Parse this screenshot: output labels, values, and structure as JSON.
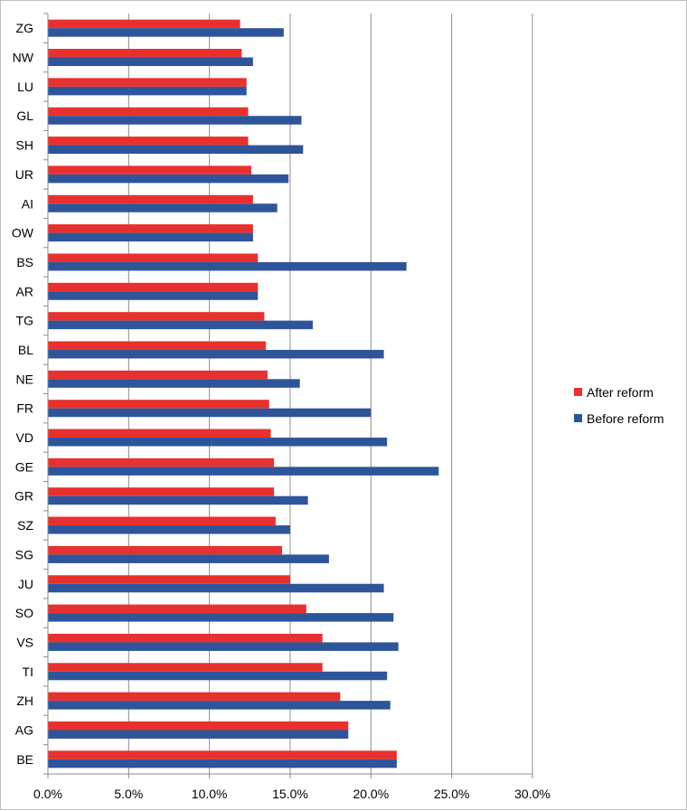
{
  "chart_data": {
    "type": "bar",
    "orientation": "horizontal",
    "title": "",
    "xlabel": "",
    "ylabel": "",
    "xlim": [
      0,
      0.3
    ],
    "x_ticks": [
      0,
      0.05,
      0.1,
      0.15,
      0.2,
      0.25,
      0.3
    ],
    "x_tick_labels": [
      "0.0%",
      "5.0%",
      "10.0%",
      "15.0%",
      "20.0%",
      "25.0%",
      "30.0%"
    ],
    "grid": "vertical major gridlines",
    "legend_position": "right",
    "categories": [
      "ZG",
      "NW",
      "LU",
      "GL",
      "SH",
      "UR",
      "AI",
      "OW",
      "BS",
      "AR",
      "TG",
      "BL",
      "NE",
      "FR",
      "VD",
      "GE",
      "GR",
      "SZ",
      "SG",
      "JU",
      "SO",
      "VS",
      "TI",
      "ZH",
      "AG",
      "BE"
    ],
    "series": [
      {
        "name": "After reform",
        "color": "#e8312f",
        "values": [
          0.119,
          0.12,
          0.123,
          0.124,
          0.124,
          0.126,
          0.127,
          0.127,
          0.13,
          0.13,
          0.134,
          0.135,
          0.136,
          0.137,
          0.138,
          0.14,
          0.14,
          0.141,
          0.145,
          0.15,
          0.16,
          0.17,
          0.17,
          0.181,
          0.186,
          0.216
        ]
      },
      {
        "name": "Before reform",
        "color": "#2e5599",
        "values": [
          0.146,
          0.127,
          0.123,
          0.157,
          0.158,
          0.149,
          0.142,
          0.127,
          0.222,
          0.13,
          0.164,
          0.208,
          0.156,
          0.2,
          0.21,
          0.242,
          0.161,
          0.15,
          0.174,
          0.208,
          0.214,
          0.217,
          0.21,
          0.212,
          0.186,
          0.216
        ]
      }
    ]
  }
}
